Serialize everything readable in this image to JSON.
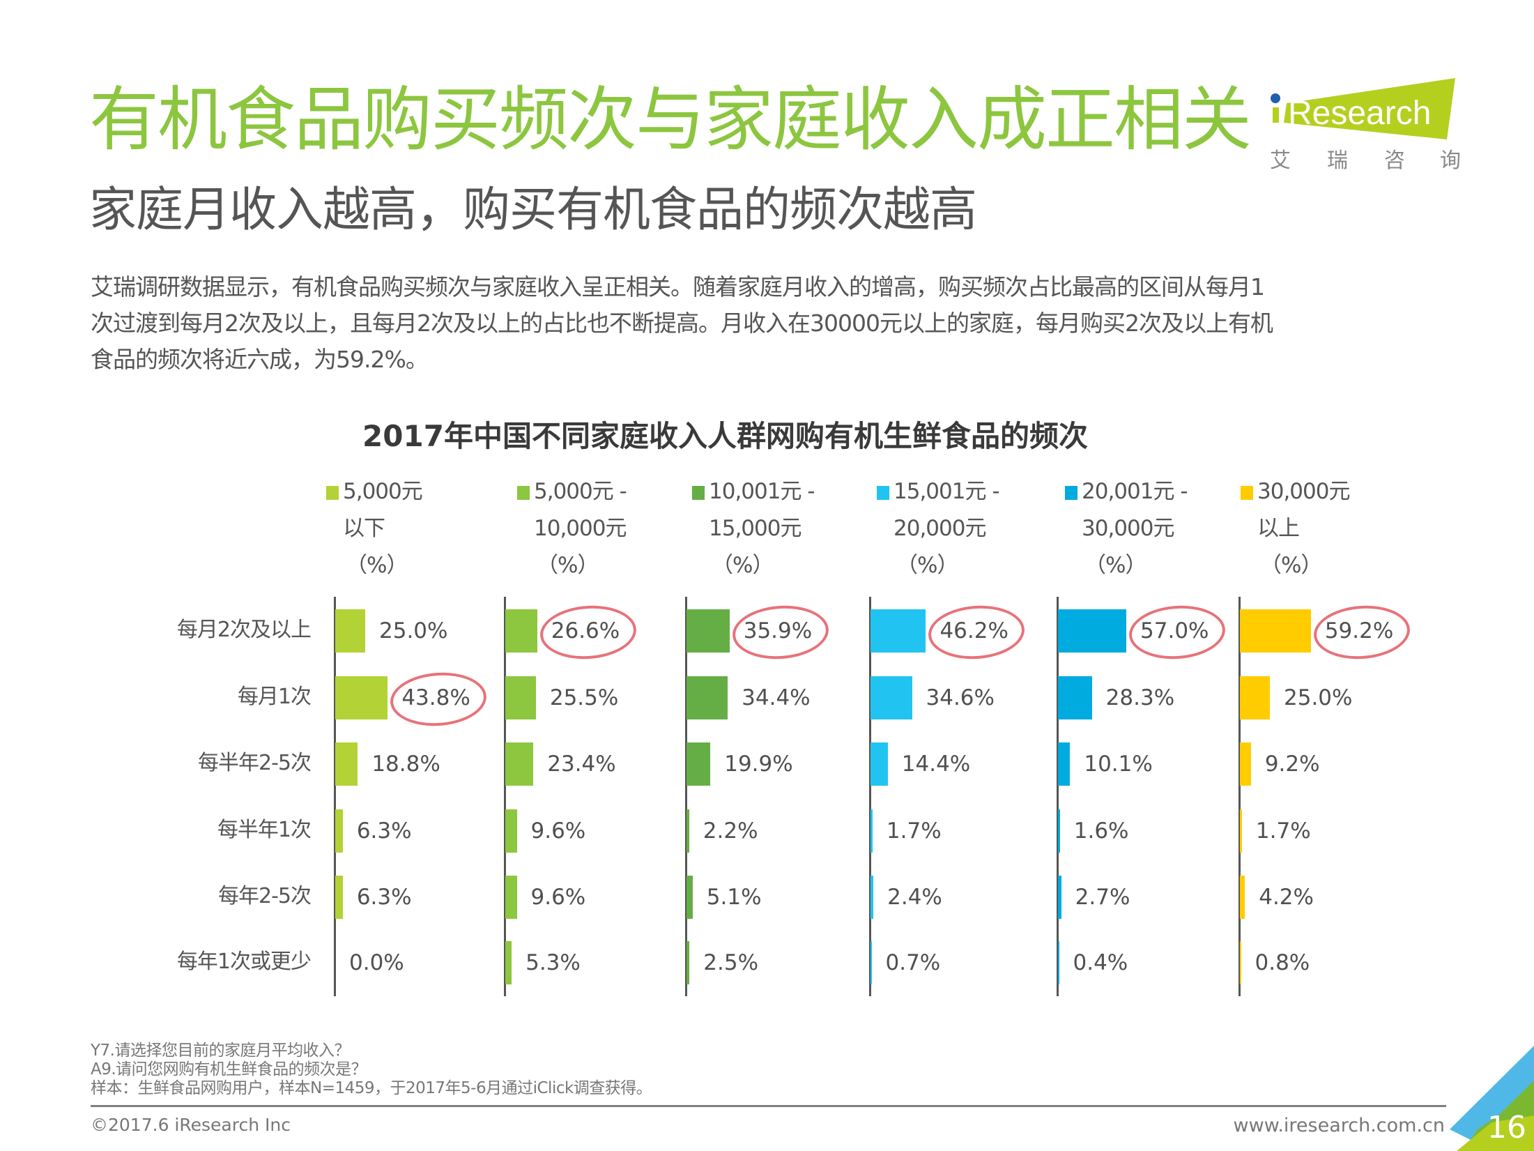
{
  "header": {
    "title": "有机食品购买频次与家庭收入成正相关",
    "subtitle": "家庭月收入越高，购买有机食品的频次越高",
    "paragraph_lines": [
      "艾瑞调研数据显示，有机食品购买频次与家庭收入呈正相关。随着家庭月收入的增高，购买频次占比最高的区间从每月1",
      "次过渡到每月2次及以上，且每月2次及以上的占比也不断提高。月收入在30000元以上的家庭，每月购买2次及以上有机",
      "食品的频次将近六成，为59.2%。"
    ]
  },
  "logo": {
    "brand": "iResearch",
    "chinese": [
      "艾",
      "瑞",
      "咨",
      "询"
    ],
    "colors": {
      "badge": "#b5cf1f",
      "dot": "#1f5fb0"
    }
  },
  "chart_data": {
    "type": "bar",
    "orientation": "horizontal",
    "layout": "small-multiples",
    "title": "2017年中国不同家庭收入人群网购有机生鲜食品的频次",
    "categories": [
      "每月2次及以上",
      "每月1次",
      "每半年2-5次",
      "每半年1次",
      "每年2-5次",
      "每年1次或更少"
    ],
    "unit": "%",
    "xlim": [
      0,
      100
    ],
    "series": [
      {
        "name": "5,000元以下（%）",
        "legend_lines": [
          "5,000元",
          "以下",
          "（%）"
        ],
        "color": "#b2d235",
        "values": [
          25.0,
          43.8,
          18.8,
          6.3,
          6.3,
          0.0
        ],
        "labels": [
          "25.0%",
          "43.8%",
          "18.8%",
          "6.3%",
          "6.3%",
          "0.0%"
        ],
        "highlight_index": 1
      },
      {
        "name": "5,000元 - 10,000元（%）",
        "legend_lines": [
          "5,000元 -",
          "10,000元",
          "（%）"
        ],
        "color": "#8dc63f",
        "values": [
          26.6,
          25.5,
          23.4,
          9.6,
          9.6,
          5.3
        ],
        "labels": [
          "26.6%",
          "25.5%",
          "23.4%",
          "9.6%",
          "9.6%",
          "5.3%"
        ],
        "highlight_index": 0
      },
      {
        "name": "10,001元 - 15,000元（%）",
        "legend_lines": [
          "10,001元 -",
          "15,000元",
          "（%）"
        ],
        "color": "#65ae45",
        "values": [
          35.9,
          34.4,
          19.9,
          2.2,
          5.1,
          2.5
        ],
        "labels": [
          "35.9%",
          "34.4%",
          "19.9%",
          "2.2%",
          "5.1%",
          "2.5%"
        ],
        "highlight_index": 0
      },
      {
        "name": "15,001元 - 20,000元（%）",
        "legend_lines": [
          "15,001元 -",
          "20,000元",
          "（%）"
        ],
        "color": "#21c4f0",
        "values": [
          46.2,
          34.6,
          14.4,
          1.7,
          2.4,
          0.7
        ],
        "labels": [
          "46.2%",
          "34.6%",
          "14.4%",
          "1.7%",
          "2.4%",
          "0.7%"
        ],
        "highlight_index": 0
      },
      {
        "name": "20,001元 - 30,000元（%）",
        "legend_lines": [
          "20,001元 -",
          "30,000元",
          "（%）"
        ],
        "color": "#00abdf",
        "values": [
          57.0,
          28.3,
          10.1,
          1.6,
          2.7,
          0.4
        ],
        "labels": [
          "57.0%",
          "28.3%",
          "10.1%",
          "1.6%",
          "2.7%",
          "0.4%"
        ],
        "highlight_index": 0
      },
      {
        "name": "30,000元以上（%）",
        "legend_lines": [
          "30,000元",
          "以上",
          "（%）"
        ],
        "color": "#ffcc00",
        "values": [
          59.2,
          25.0,
          9.2,
          1.7,
          4.2,
          0.8
        ],
        "labels": [
          "59.2%",
          "25.0%",
          "9.2%",
          "1.7%",
          "4.2%",
          "0.8%"
        ],
        "highlight_index": 0
      }
    ],
    "highlight_color": "#e8727a",
    "grid": false,
    "legend_position": "top"
  },
  "notes": [
    "Y7.请选择您目前的家庭月平均收入？",
    "A9.请问您网购有机生鲜食品的频次是？",
    "样本：生鲜食品网购用户，样本N=1459，于2017年5-6月通过iClick调查获得。"
  ],
  "footer": {
    "copyright": "©2017.6 iResearch Inc",
    "website": "www.iresearch.com.cn",
    "page_number": "16"
  }
}
